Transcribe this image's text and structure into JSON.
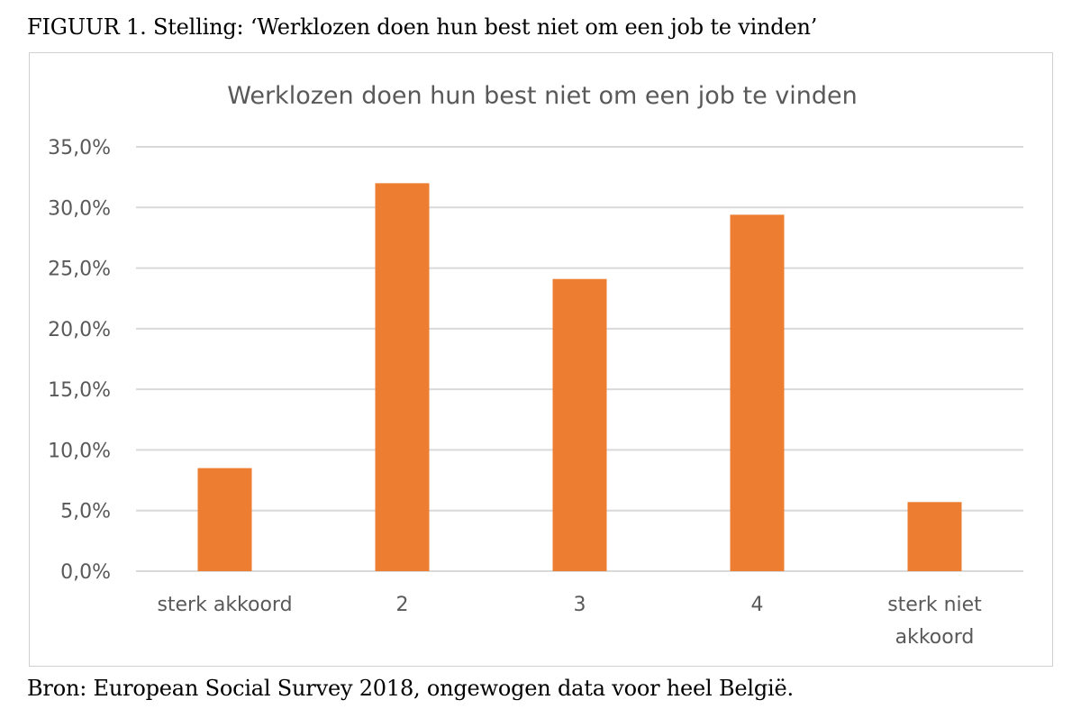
{
  "figure_caption": "FIGUUR 1. Stelling: ‘Werklozen doen hun best niet om een job te vinden’",
  "source_note": "Bron: European Social Survey 2018, ongewogen data voor heel België.",
  "colors": {
    "bar": "#ED7D31",
    "grid": "#D9D9D9",
    "text": "#595959"
  },
  "chart_data": {
    "type": "bar",
    "title": "Werklozen doen hun best niet om een job te vinden",
    "categories": [
      [
        "sterk akkoord"
      ],
      [
        "2"
      ],
      [
        "3"
      ],
      [
        "4"
      ],
      [
        "sterk niet",
        "akkoord"
      ]
    ],
    "values": [
      8.5,
      32.0,
      24.1,
      29.4,
      5.7
    ],
    "ylim": [
      0,
      35
    ],
    "yticks": [
      {
        "value": 0,
        "label": "0,0%"
      },
      {
        "value": 5,
        "label": "5,0%"
      },
      {
        "value": 10,
        "label": "10,0%"
      },
      {
        "value": 15,
        "label": "15,0%"
      },
      {
        "value": 20,
        "label": "20,0%"
      },
      {
        "value": 25,
        "label": "25,0%"
      },
      {
        "value": 30,
        "label": "30,0%"
      },
      {
        "value": 35,
        "label": "35,0%"
      }
    ],
    "xlabel": "",
    "ylabel": "",
    "grid": true,
    "legend": "none"
  }
}
